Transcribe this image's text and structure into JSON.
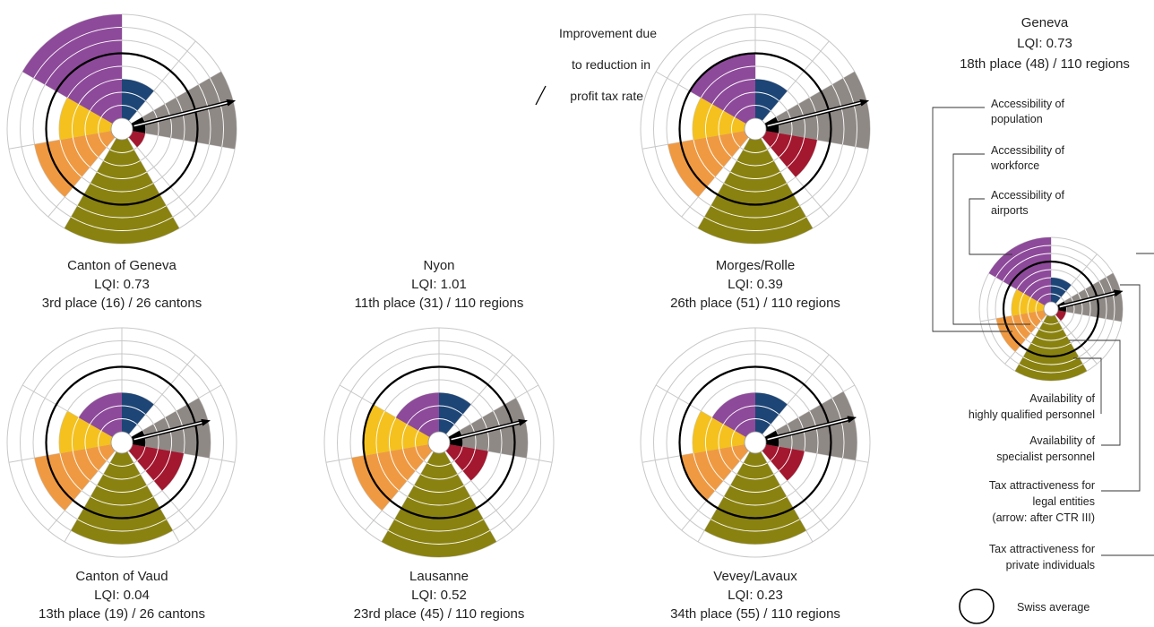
{
  "chart_data": {
    "type": "radar-rose",
    "colors": {
      "accessibility_population": "#8e4a9a",
      "accessibility_workforce": "#f4c11e",
      "accessibility_airports": "#ef9a42",
      "availability_highly_qualified": "#8a8210",
      "availability_specialist": "#a3172f",
      "tax_legal": "#8f8985",
      "tax_private": "#1d4576",
      "average_ring": "#000000"
    },
    "max_level": 8,
    "swiss_average_level": 5,
    "charts": [
      {
        "name": "Canton of Geneva",
        "lqi": "LQI: 0.73",
        "rank": "3rd place (16) / 26 cantons",
        "values": {
          "tax_private": 3,
          "tax_legal": 8,
          "availability_specialist": 1,
          "availability_highly_qualified": 8,
          "accessibility_airports": 6,
          "accessibility_workforce": 4,
          "accessibility_population": 8
        },
        "arrow_level": 8
      },
      {
        "name": "Nyon",
        "lqi": "LQI: 1.01",
        "rank": "11th place (31) / 110 regions",
        "values": null,
        "arrow_level": null
      },
      {
        "name": "Morges/Rolle",
        "lqi": "LQI: 0.39",
        "rank": "26th place (51) / 110 regions",
        "values": {
          "tax_private": 3,
          "tax_legal": 8,
          "availability_specialist": 4,
          "availability_highly_qualified": 8,
          "accessibility_airports": 6,
          "accessibility_workforce": 4,
          "accessibility_population": 5
        },
        "arrow_level": 8
      },
      {
        "name": "Canton of Vaud",
        "lqi": "LQI: 0.04",
        "rank": "13th place (19) / 26 cantons",
        "values": {
          "tax_private": 3,
          "tax_legal": 6,
          "availability_specialist": 4,
          "availability_highly_qualified": 7,
          "accessibility_airports": 6,
          "accessibility_workforce": 4,
          "accessibility_population": 3
        },
        "arrow_level": 6
      },
      {
        "name": "Lausanne",
        "lqi": "LQI: 0.52",
        "rank": "23rd place (45) / 110 regions",
        "values": {
          "tax_private": 3,
          "tax_legal": 6,
          "availability_specialist": 3,
          "availability_highly_qualified": 8,
          "accessibility_airports": 6,
          "accessibility_workforce": 5,
          "accessibility_population": 3
        },
        "arrow_level": 6
      },
      {
        "name": "Vevey/Lavaux",
        "lqi": "LQI: 0.23",
        "rank": "34th place (55) / 110 regions",
        "values": {
          "tax_private": 3,
          "tax_legal": 7,
          "availability_specialist": 3,
          "availability_highly_qualified": 7,
          "accessibility_airports": 5,
          "accessibility_workforce": 4,
          "accessibility_population": 3
        },
        "arrow_level": 7
      }
    ],
    "annotation": {
      "line1": "Improvement due",
      "line2": "to reduction in",
      "line3": "profit tax rate"
    },
    "legend": {
      "title": "Geneva",
      "lqi": "LQI: 0.73",
      "rank": "18th place (48) / 110 regions",
      "values": {
        "tax_private": 3,
        "tax_legal": 8,
        "availability_specialist": 1,
        "availability_highly_qualified": 8,
        "accessibility_airports": 6,
        "accessibility_workforce": 4,
        "accessibility_population": 8
      },
      "arrow_level": 8,
      "items": {
        "pop_1": "Accessibility of",
        "pop_2": "population",
        "work_1": "Accessibility of",
        "work_2": "workforce",
        "air_1": "Accessibility of",
        "air_2": "airports",
        "hq_1": "Availability of",
        "hq_2": "highly qualified personnel",
        "spec_1": "Availability of",
        "spec_2": "specialist personnel",
        "legal_1": "Tax attractiveness for",
        "legal_2": "legal entities",
        "legal_3": "(arrow: after CTR III)",
        "priv_1": "Tax attractiveness for",
        "priv_2": "private individuals",
        "avg": "Swiss average"
      }
    }
  }
}
